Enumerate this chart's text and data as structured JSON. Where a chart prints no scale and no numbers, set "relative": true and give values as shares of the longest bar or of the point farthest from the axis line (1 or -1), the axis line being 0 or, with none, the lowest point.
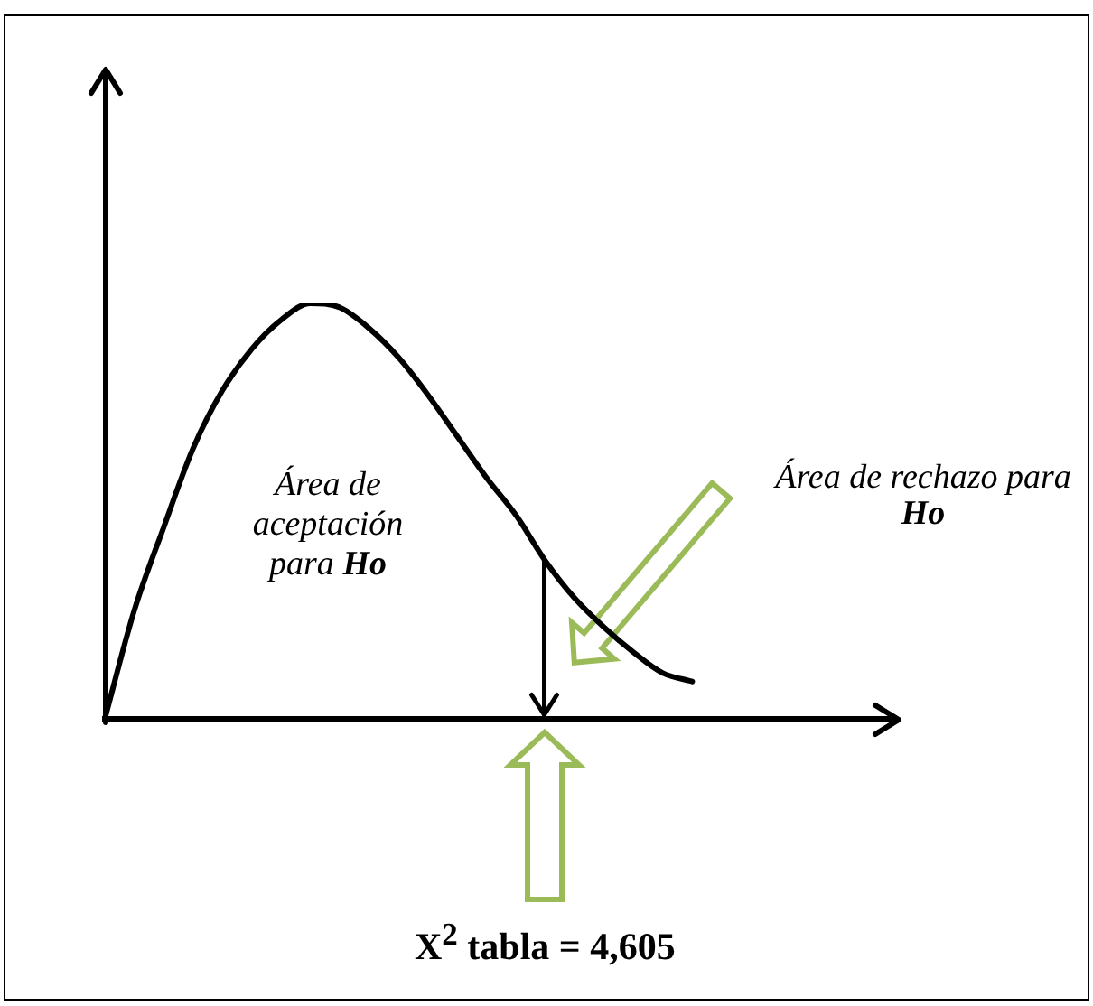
{
  "chart_data": {
    "type": "line",
    "relative": true,
    "tick_labels": false,
    "categories": [
      null,
      null,
      null,
      null,
      null,
      null,
      null,
      null,
      null,
      null,
      null,
      null,
      null,
      null,
      null,
      null,
      null,
      null,
      null,
      null,
      null,
      null,
      null,
      null,
      null,
      null,
      null,
      null
    ],
    "values": [
      0,
      0.26,
      0.46,
      0.65,
      0.79,
      0.89,
      0.96,
      1,
      0.99,
      0.94,
      0.87,
      0.78,
      0.68,
      0.58,
      0.49,
      0.38,
      0.29,
      0.22,
      0.16,
      0.11,
      0.09,
      null,
      null,
      null,
      null,
      null,
      null,
      null
    ],
    "color": "#000000",
    "annotations": [
      "Área de aceptación para Ho",
      "Área de rechazo para Ho",
      "X$^{2}$ tabla = 4,605"
    ]
  }
}
